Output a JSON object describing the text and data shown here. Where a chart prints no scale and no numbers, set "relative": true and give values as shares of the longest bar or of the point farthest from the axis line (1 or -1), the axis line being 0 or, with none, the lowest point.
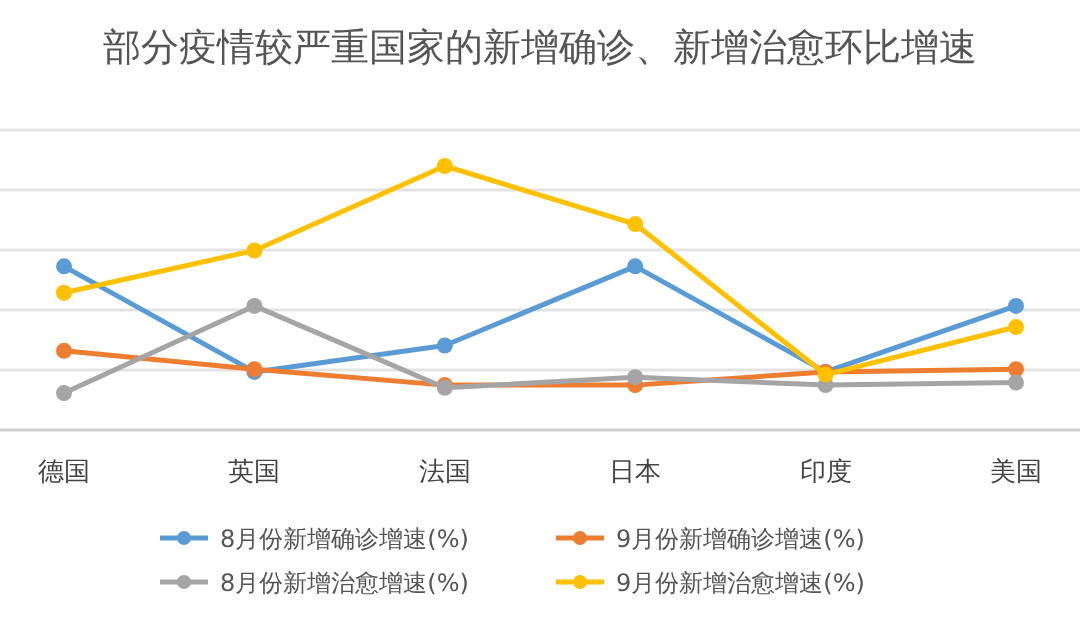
{
  "chart_data": {
    "type": "line",
    "title": "部分疫情较严重国家的新增确诊、新增治愈环比增速",
    "relative": true,
    "categories": [
      "德国",
      "英国",
      "法国",
      "日本",
      "印度",
      "美国"
    ],
    "marker": "circle",
    "grid": "y",
    "legend": "bottom",
    "series": [
      {
        "name": "8月份新增确诊增速(%)",
        "color": "#5b9bd5",
        "values": [
          0.62,
          0.22,
          0.32,
          0.62,
          0.22,
          0.47
        ]
      },
      {
        "name": "9月份新增确诊增速(%)",
        "color": "#ed7d31",
        "values": [
          0.3,
          0.23,
          0.17,
          0.17,
          0.22,
          0.23
        ]
      },
      {
        "name": "8月份新增治愈增速(%)",
        "color": "#a5a5a5",
        "values": [
          0.14,
          0.47,
          0.16,
          0.2,
          0.17,
          0.18
        ]
      },
      {
        "name": "9月份新增治愈增速(%)",
        "color": "#ffc000",
        "values": [
          0.52,
          0.68,
          1,
          0.78,
          0.21,
          0.39
        ]
      }
    ]
  }
}
